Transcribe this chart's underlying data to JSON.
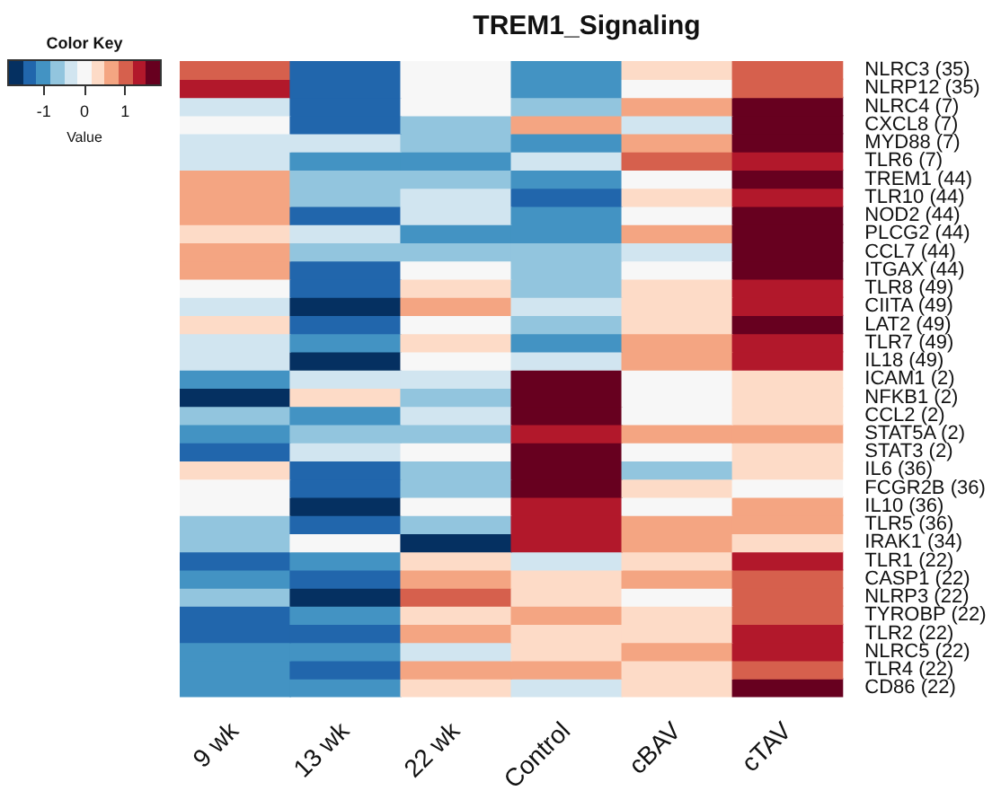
{
  "chart_data": {
    "type": "heatmap",
    "title": "TREM1_Signaling",
    "legend_title": "Color Key",
    "clabel": "Value",
    "categories": [
      "9 wk",
      "13 wk",
      "22 wk",
      "Control",
      "cBAV",
      "cTAV"
    ],
    "y_categories": [
      "NLRC3 (35)",
      "NLRP12 (35)",
      "NLRC4 (7)",
      "CXCL8 (7)",
      "MYD88 (7)",
      "TLR6 (7)",
      "TREM1 (44)",
      "TLR10 (44)",
      "NOD2 (44)",
      "PLCG2 (44)",
      "CCL7 (44)",
      "ITGAX (44)",
      "TLR8 (49)",
      "CIITA (49)",
      "LAT2 (49)",
      "TLR7 (49)",
      "IL18 (49)",
      "ICAM1 (2)",
      "NFKB1 (2)",
      "CCL2 (2)",
      "STAT5A (2)",
      "STAT3 (2)",
      "IL6 (36)",
      "FCGR2B (36)",
      "IL10 (36)",
      "TLR5 (36)",
      "IRAK1 (34)",
      "TLR1 (22)",
      "CASP1 (22)",
      "NLRP3 (22)",
      "TYROBP (22)",
      "TLR2 (22)",
      "NLRC5 (22)",
      "TLR4 (22)",
      "CD86 (22)"
    ],
    "cells": [
      [
        1.05,
        -1.4,
        0,
        -1.05,
        0.35,
        1.05
      ],
      [
        1.4,
        -1.4,
        0,
        -1.05,
        0,
        1.05
      ],
      [
        -0.35,
        -1.4,
        0,
        -0.7,
        0.7,
        1.7
      ],
      [
        0,
        -1.4,
        -0.7,
        0.7,
        -0.35,
        1.7
      ],
      [
        -0.35,
        -0.35,
        -0.7,
        -1.05,
        0.7,
        1.7
      ],
      [
        -0.35,
        -1.05,
        -1.05,
        -0.35,
        1.05,
        1.4
      ],
      [
        0.7,
        -0.7,
        -0.7,
        -1.05,
        0,
        1.7
      ],
      [
        0.7,
        -0.7,
        -0.35,
        -1.4,
        0.35,
        1.4
      ],
      [
        0.7,
        -1.4,
        -0.35,
        -1.05,
        0,
        1.7
      ],
      [
        0.35,
        -0.35,
        -1.05,
        -1.05,
        0.7,
        1.7
      ],
      [
        0.7,
        -0.7,
        -0.7,
        -0.7,
        -0.35,
        1.7
      ],
      [
        0.7,
        -1.4,
        0,
        -0.7,
        0,
        1.7
      ],
      [
        0,
        -1.4,
        0.35,
        -0.7,
        0.35,
        1.4
      ],
      [
        -0.35,
        -1.7,
        0.7,
        -0.35,
        0.35,
        1.4
      ],
      [
        0.35,
        -1.4,
        0,
        -0.7,
        0.35,
        1.7
      ],
      [
        -0.35,
        -1.05,
        0.35,
        -1.05,
        0.7,
        1.4
      ],
      [
        -0.35,
        -1.7,
        0,
        -0.35,
        0.7,
        1.4
      ],
      [
        -1.05,
        -0.35,
        -0.35,
        1.7,
        0,
        0.35
      ],
      [
        -1.7,
        0.35,
        -0.7,
        1.7,
        0,
        0.35
      ],
      [
        -0.7,
        -1.05,
        -0.35,
        1.7,
        0,
        0.35
      ],
      [
        -1.05,
        -0.7,
        -0.7,
        1.4,
        0.7,
        0.7
      ],
      [
        -1.4,
        -0.35,
        0,
        1.7,
        0,
        0.35
      ],
      [
        0.35,
        -1.4,
        -0.7,
        1.7,
        -0.7,
        0.35
      ],
      [
        0,
        -1.4,
        -0.7,
        1.7,
        0.35,
        0
      ],
      [
        0,
        -1.7,
        0,
        1.4,
        0,
        0.7
      ],
      [
        -0.7,
        -1.4,
        -0.7,
        1.4,
        0.7,
        0.7
      ],
      [
        -0.7,
        0,
        -1.7,
        1.4,
        0.7,
        0.35
      ],
      [
        -1.4,
        -1.05,
        0.35,
        -0.35,
        0.35,
        1.4
      ],
      [
        -1.05,
        -1.4,
        0.7,
        0.35,
        0.7,
        1.05
      ],
      [
        -0.7,
        -1.7,
        1.05,
        0.35,
        0,
        1.05
      ],
      [
        -1.4,
        -1.05,
        0.35,
        0.7,
        0.35,
        1.05
      ],
      [
        -1.4,
        -1.4,
        0.7,
        0.35,
        0.35,
        1.4
      ],
      [
        -1.05,
        -1.05,
        -0.35,
        0.35,
        0.7,
        1.4
      ],
      [
        -1.05,
        -1.4,
        0.7,
        0.7,
        0.35,
        1.05
      ],
      [
        -1.05,
        -1.05,
        0.35,
        -0.35,
        0.35,
        1.7
      ]
    ],
    "clim": [
      -1.9,
      1.9
    ],
    "cticks": [
      -1,
      0,
      1
    ]
  }
}
